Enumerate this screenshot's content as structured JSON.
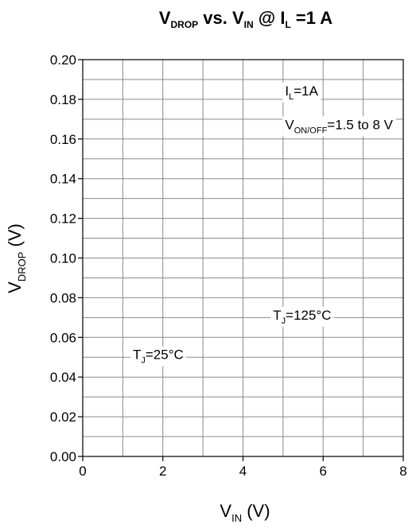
{
  "chart_data": {
    "type": "line",
    "title": {
      "main": "V",
      "main_sub": "DROP",
      "mid": " vs. V",
      "mid_sub": "IN",
      "at": " @ I",
      "at_sub": "L",
      "end": " =1 A"
    },
    "xlabel": {
      "main": "V",
      "sub": "IN",
      "unit": " (V)"
    },
    "ylabel": {
      "main": "V",
      "sub": "DROP",
      "unit": " (V)"
    },
    "xlim": [
      0,
      8
    ],
    "ylim": [
      0,
      0.2
    ],
    "x_ticks": [
      0,
      2,
      4,
      6,
      8
    ],
    "x_tick_labels": [
      "0",
      "2",
      "4",
      "6",
      "8"
    ],
    "y_ticks": [
      0,
      0.02,
      0.04,
      0.06,
      0.08,
      0.1,
      0.12,
      0.14,
      0.16,
      0.18,
      0.2
    ],
    "y_tick_labels": [
      "0.00",
      "0.02",
      "0.04",
      "0.06",
      "0.08",
      "0.10",
      "0.12",
      "0.14",
      "0.16",
      "0.18",
      "0.20"
    ],
    "grid": true,
    "x_grid_step": 1,
    "y_grid_step": 0.01,
    "series": [],
    "annotations": [
      {
        "id": "cond-il",
        "main": "I",
        "sub": "L",
        "rest": "=1A",
        "x": 5.05,
        "y": 0.182
      },
      {
        "id": "cond-von",
        "main": "V",
        "sub": "ON/OFF",
        "rest": "=1.5 to 8 V",
        "x": 5.05,
        "y": 0.165
      },
      {
        "id": "tj-125",
        "main": "T",
        "sub": "J",
        "rest": "=125°C",
        "x": 4.75,
        "y": 0.069
      },
      {
        "id": "tj-25",
        "main": "T",
        "sub": "J",
        "rest": "=25°C",
        "x": 1.25,
        "y": 0.049
      }
    ]
  }
}
